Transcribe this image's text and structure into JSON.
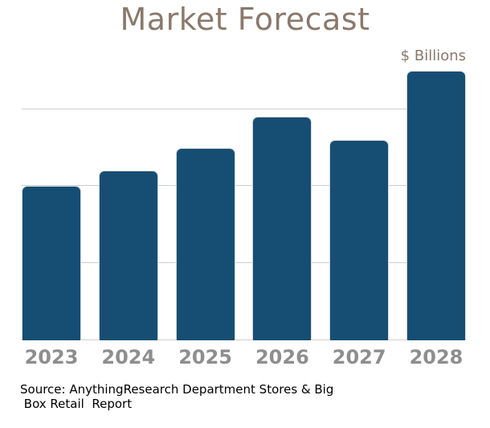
{
  "chart_data": {
    "type": "bar",
    "title": "Market Forecast",
    "unit_label": "$ Billions",
    "categories": [
      "2023",
      "2024",
      "2025",
      "2026",
      "2027",
      "2028"
    ],
    "values": [
      2.0,
      2.2,
      2.5,
      2.9,
      2.6,
      3.5
    ],
    "value_scale_note": "y-axis has no numeric tick labels; values estimated in gridline intervals above the baseline",
    "gridline_units": [
      1,
      2,
      3
    ],
    "ylim": [
      0,
      3.58
    ],
    "legend": "none",
    "grid": "horizontal-only",
    "colors": {
      "bar": "#164E73",
      "bar_border": "#D8D8D8",
      "title": "#8A796C",
      "unit_label": "#8A796C",
      "year_labels": "#8E8E8E",
      "gridline": "#CFCFCF",
      "source_text": "#000000",
      "background": "#FFFFFF"
    },
    "source_lines": [
      "Source: AnythingResearch Department Stores & Big",
      " Box Retail  Report"
    ]
  }
}
